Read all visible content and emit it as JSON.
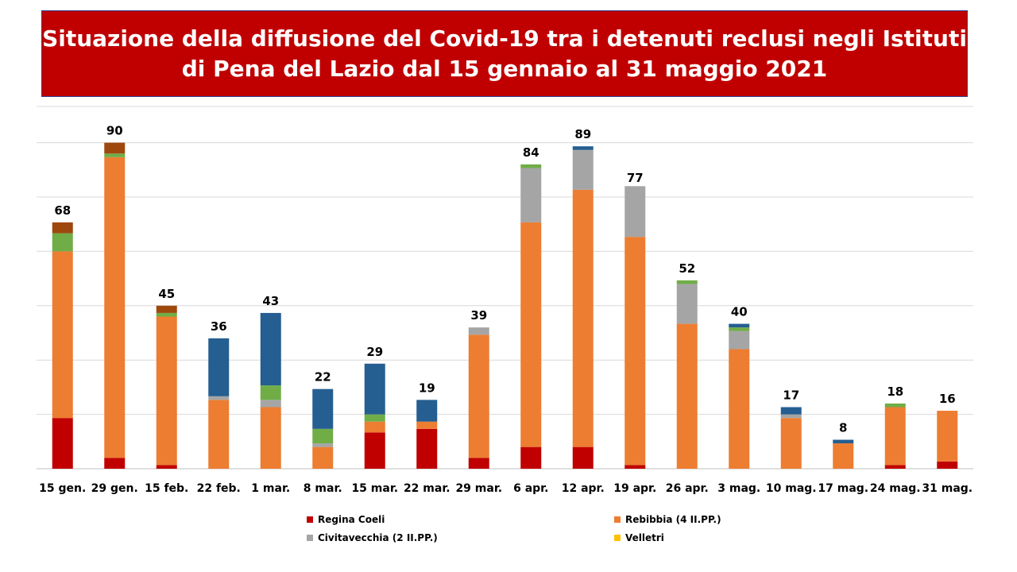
{
  "title": {
    "line1": "Situazione della diffusione del Covid-19 tra i detenuti reclusi negli Istituti",
    "line2": "di Pena del Lazio dal 15 gennaio al 31 maggio 2021"
  },
  "colors": {
    "title_background": "#c00000",
    "title_text": "#ffffff",
    "gridline": "#d9d9d9"
  },
  "chart_data": {
    "type": "bar",
    "stacked": true,
    "grid": true,
    "legend_position": "bottom",
    "categories": [
      "15 gen.",
      "29 gen.",
      "15 feb.",
      "22 feb.",
      "1 mar.",
      "8 mar.",
      "15 mar.",
      "22 mar.",
      "29 mar.",
      "6 apr.",
      "12 apr.",
      "19 apr.",
      "26 apr.",
      "3 mag.",
      "10 mag.",
      "17 mag.",
      "24 mag.",
      "31 mag."
    ],
    "totals": [
      68,
      90,
      45,
      36,
      43,
      22,
      29,
      19,
      39,
      84,
      89,
      77,
      52,
      40,
      17,
      8,
      18,
      16
    ],
    "ylim": [
      0,
      100
    ],
    "series": [
      {
        "name": "Regina Coeli",
        "color": "#c00000",
        "values": [
          14,
          3,
          1,
          0,
          0,
          0,
          10,
          11,
          3,
          6,
          6,
          1,
          0,
          0,
          0,
          0,
          1,
          2
        ]
      },
      {
        "name": "Rebibbia (4 II.PP.)",
        "color": "#ed7d31",
        "values": [
          46,
          83,
          41,
          19,
          17,
          6,
          3,
          2,
          34,
          62,
          71,
          63,
          40,
          33,
          14,
          7,
          16,
          14
        ]
      },
      {
        "name": "Civitavecchia (2 II.PP.)",
        "color": "#a5a5a5",
        "values": [
          0,
          0,
          0,
          1,
          2,
          1,
          0,
          0,
          2,
          15,
          11,
          14,
          11,
          5,
          1,
          0,
          0,
          0
        ]
      },
      {
        "name": "Velletri",
        "color": "#ffc000",
        "values": [
          0,
          0,
          0,
          0,
          0,
          0,
          0,
          0,
          0,
          0,
          0,
          0,
          0,
          0,
          0,
          0,
          0,
          0
        ]
      },
      {
        "name": "",
        "color": "#70ad47",
        "values": [
          5,
          1,
          1,
          0,
          4,
          4,
          2,
          0,
          0,
          1,
          0,
          0,
          1,
          1,
          0,
          0,
          1,
          0
        ]
      },
      {
        "name": "",
        "color": "#255e91",
        "values": [
          0,
          0,
          0,
          16,
          20,
          11,
          14,
          6,
          0,
          0,
          1,
          0,
          0,
          1,
          2,
          1,
          0,
          0
        ]
      },
      {
        "name": "",
        "color": "#9e480e",
        "values": [
          3,
          3,
          2,
          0,
          0,
          0,
          0,
          0,
          0,
          0,
          0,
          0,
          0,
          0,
          0,
          0,
          0,
          0
        ]
      }
    ]
  },
  "legend": [
    {
      "label": "Regina Coeli",
      "color": "#c00000"
    },
    {
      "label": "Rebibbia (4 II.PP.)",
      "color": "#ed7d31"
    },
    {
      "label": "Civitavecchia (2 II.PP.)",
      "color": "#a5a5a5"
    },
    {
      "label": "Velletri",
      "color": "#ffc000"
    }
  ]
}
